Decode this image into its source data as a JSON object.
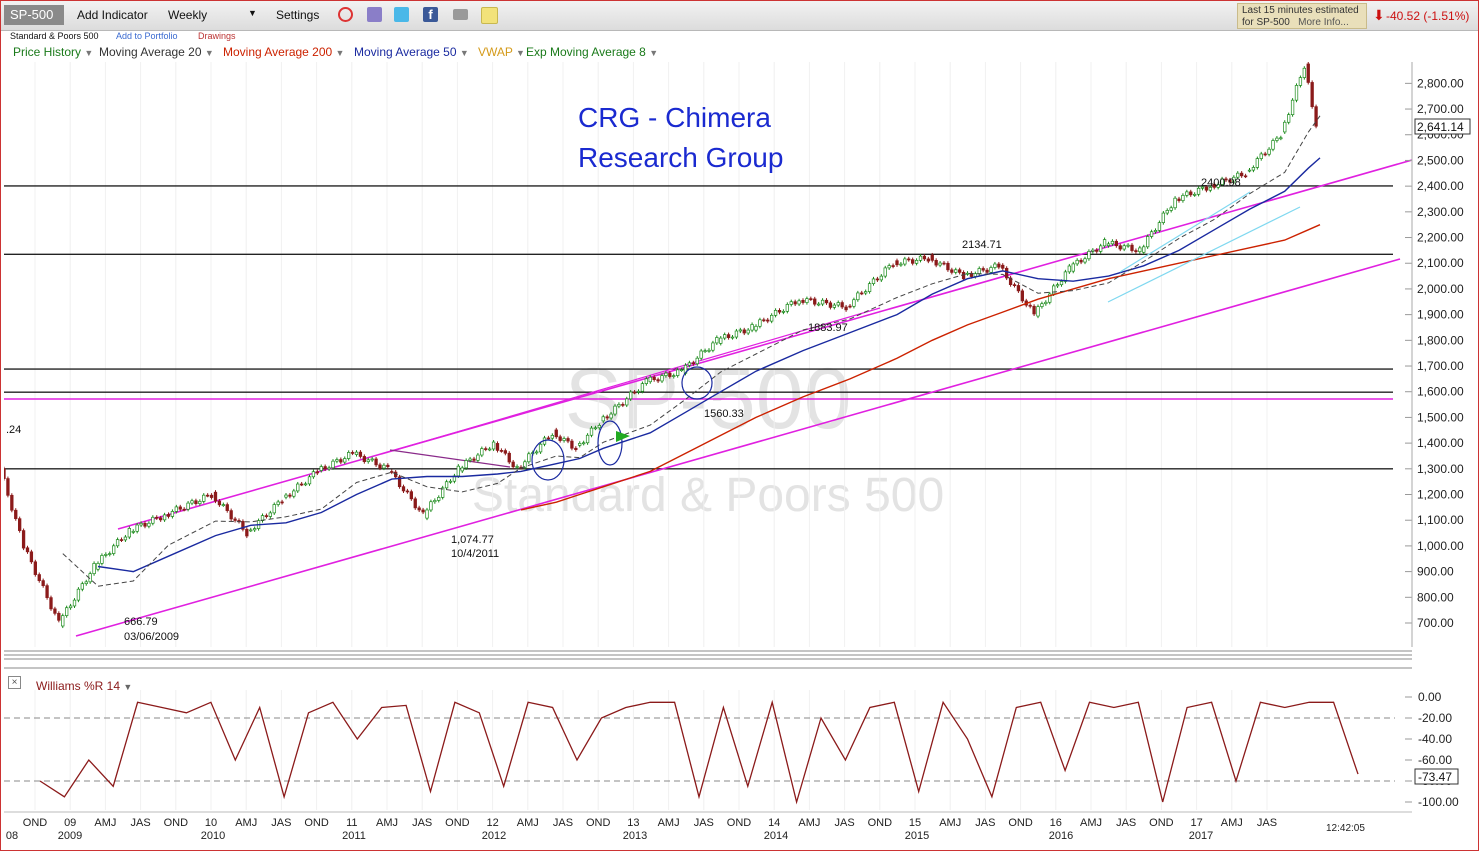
{
  "toolbar": {
    "symbol": "SP-500",
    "add_indicator": "Add Indicator",
    "period": "Weekly",
    "settings": "Settings",
    "quote_line1": "Last 15 minutes estimated",
    "quote_line2": "for SP-500",
    "more_info": "More Info...",
    "change": "-40.52 (-1.51%)"
  },
  "subbar": {
    "name": "Standard & Poors 500",
    "add_to_portfolio": "Add to Portfolio",
    "drawings": "Drawings"
  },
  "indicators": [
    {
      "label": "Price History",
      "color": "#1a7a1a"
    },
    {
      "label": "Moving Average 20",
      "color": "#333333"
    },
    {
      "label": "Moving Average 200",
      "color": "#cc2200"
    },
    {
      "label": "Moving Average 50",
      "color": "#1a2aa0"
    },
    {
      "label": "VWAP",
      "color": "#d49a1a"
    },
    {
      "label": "Exp Moving Average 8",
      "color": "#1a7a1a"
    }
  ],
  "watermark": {
    "symbol": "SP-500",
    "name": "Standard & Poors 500"
  },
  "annotation": {
    "line1": "CRG - Chimera",
    "line2": "Research Group",
    "color": "#1a2ad0"
  },
  "williams": {
    "label": "Williams %R 14",
    "current": "-73.47",
    "color": "#8b1a1a"
  },
  "current_price": "2,641.14",
  "clock": "12:42:05",
  "chart_data": [
    {
      "type": "line",
      "title": "SP-500",
      "subtitle": "Standard & Poors 500",
      "x": [
        "2008-10",
        "2008-12",
        "2009-03",
        "2009-06",
        "2009-09",
        "2009-12",
        "2010-04",
        "2010-07",
        "2010-10",
        "2011-01",
        "2011-04",
        "2011-07",
        "2011-10",
        "2012-01",
        "2012-04",
        "2012-06",
        "2012-09",
        "2012-11",
        "2013-01",
        "2013-05",
        "2013-08",
        "2013-11",
        "2014-02",
        "2014-06",
        "2014-10",
        "2015-02",
        "2015-05",
        "2015-08",
        "2015-11",
        "2016-02",
        "2016-05",
        "2016-08",
        "2016-11",
        "2017-02",
        "2017-05",
        "2017-08",
        "2017-11",
        "2018-01",
        "2018-02"
      ],
      "series": [
        {
          "name": "Price History",
          "values": [
            1300,
            1000,
            700,
            920,
            1060,
            1120,
            1200,
            1050,
            1180,
            1290,
            1360,
            1300,
            1120,
            1300,
            1400,
            1300,
            1440,
            1380,
            1480,
            1640,
            1680,
            1800,
            1850,
            1960,
            1930,
            2100,
            2120,
            2050,
            2090,
            1900,
            2080,
            2180,
            2150,
            2350,
            2400,
            2450,
            2600,
            2870,
            2641
          ]
        },
        {
          "name": "Moving Average 50",
          "values": [
            null,
            null,
            null,
            920,
            900,
            960,
            1040,
            1080,
            1090,
            1130,
            1200,
            1260,
            1270,
            1270,
            1280,
            1290,
            1320,
            1340,
            1380,
            1440,
            1520,
            1600,
            1680,
            1760,
            1830,
            1900,
            1980,
            2040,
            2070,
            2040,
            2030,
            2050,
            2090,
            2150,
            2230,
            2310,
            2380,
            2470,
            2510
          ]
        },
        {
          "name": "Moving Average 200",
          "values": [
            null,
            null,
            null,
            null,
            null,
            null,
            null,
            null,
            null,
            null,
            null,
            null,
            null,
            null,
            null,
            1140,
            1170,
            1200,
            1230,
            1290,
            1360,
            1430,
            1500,
            1580,
            1650,
            1730,
            1800,
            1860,
            1910,
            1960,
            2000,
            2040,
            2070,
            2100,
            2130,
            2160,
            2190,
            2230,
            2250
          ]
        }
      ],
      "ylim": [
        650,
        2870
      ],
      "ticks_y": [
        "700.00",
        "800.00",
        "900.00",
        "1,000.00",
        "1,100.00",
        "1,200.00",
        "1,300.00",
        "1,400.00",
        "1,500.00",
        "1,600.00",
        "1,700.00",
        "1,800.00",
        "1,900.00",
        "2,000.00",
        "2,100.00",
        "2,200.00",
        "2,300.00",
        "2,400.00",
        "2,500.00",
        "2,600.00",
        "2,700.00",
        "2,800.00"
      ],
      "ticks_x_months": [
        "OND",
        "09",
        "AMJ",
        "JAS",
        "OND",
        "10",
        "AMJ",
        "JAS",
        "OND",
        "11",
        "AMJ",
        "JAS",
        "OND",
        "12",
        "AMJ",
        "JAS",
        "OND",
        "13",
        "AMJ",
        "JAS",
        "OND",
        "14",
        "AMJ",
        "JAS",
        "OND",
        "15",
        "AMJ",
        "JAS",
        "OND",
        "16",
        "AMJ",
        "JAS",
        "OND",
        "17",
        "AMJ",
        "JAS"
      ],
      "ticks_x_years": [
        "08",
        "2009",
        "2010",
        "2011",
        "2012",
        "2013",
        "2014",
        "2015",
        "2016",
        "2017"
      ],
      "horizontal_levels": [
        1300,
        1598,
        1688,
        2134.71,
        2400.98
      ],
      "labels": [
        {
          "text": "666.79",
          "x": "2009-03"
        },
        {
          "text": "03/06/2009",
          "x": "2009-03"
        },
        {
          "text": "1,074.77",
          "x": "2011-10"
        },
        {
          "text": "10/4/2011",
          "x": "2011-10"
        },
        {
          "text": "2134.71",
          "x": "2015-05"
        },
        {
          "text": "2400.98",
          "x": "2017-03"
        },
        {
          "text": "1560.33",
          "x": "2013-06"
        },
        {
          "text": "1883.97",
          "x": "2014-03"
        },
        {
          "text": ".24",
          "x": "2008-10"
        }
      ]
    },
    {
      "type": "line",
      "title": "Williams %R 14",
      "series": [
        {
          "name": "Williams %R 14",
          "values": [
            -80,
            -95,
            -60,
            -85,
            -5,
            -10,
            -15,
            -5,
            -60,
            -10,
            -95,
            -15,
            -5,
            -40,
            -10,
            -8,
            -90,
            -5,
            -15,
            -85,
            -5,
            -10,
            -60,
            -20,
            -10,
            -5,
            -5,
            -95,
            -10,
            -85,
            -5,
            -100,
            -20,
            -60,
            -10,
            -5,
            -90,
            -5,
            -40,
            -95,
            -10,
            -5,
            -70,
            -5,
            -10,
            -5,
            -100,
            -10,
            -5,
            -80,
            -5,
            -10,
            -5,
            -5,
            -73.47
          ]
        }
      ],
      "ylim": [
        -100,
        0
      ],
      "ticks_y": [
        "0.00",
        "-20.00",
        "-40.00",
        "-60.00",
        "-80.00",
        "-100.00"
      ],
      "levels": [
        -20,
        -80
      ]
    }
  ],
  "colors": {
    "trend_channel": "#e020e0",
    "support_lines": "#222222",
    "bullish_candle": "#1a8a1a",
    "bearish_candle": "#8b1a1a",
    "axis_text": "#222222"
  }
}
